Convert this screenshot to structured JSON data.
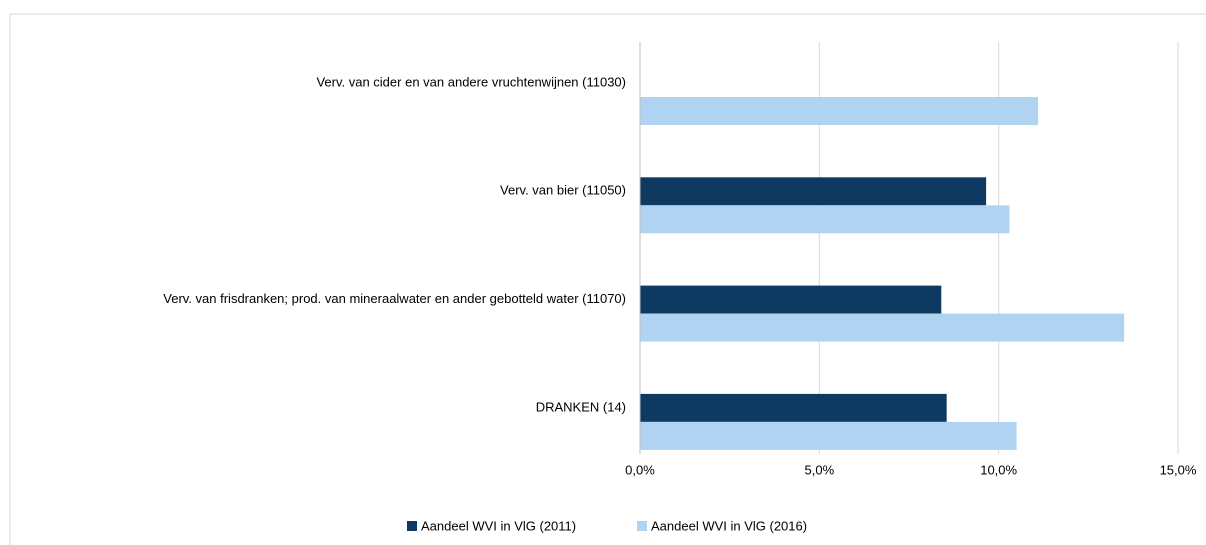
{
  "chart_data": {
    "type": "bar",
    "orientation": "horizontal",
    "categories": [
      "Verv. van cider en van andere vruchtenwijnen (11030)",
      "Verv. van bier (11050)",
      "Verv. van frisdranken; prod. van mineraalwater en ander gebotteld water (11070)",
      "DRANKEN (14)"
    ],
    "series": [
      {
        "name": "Aandeel WVI in VlG (2011)",
        "color": "#0e3a62",
        "values": [
          null,
          9.65,
          8.4,
          8.55
        ]
      },
      {
        "name": "Aandeel WVI in VlG (2016)",
        "color": "#b0d3f2",
        "values": [
          11.1,
          10.3,
          13.5,
          10.5
        ]
      }
    ],
    "xlim": [
      0,
      15
    ],
    "xticks": [
      {
        "value": 0,
        "label": "0,0%"
      },
      {
        "value": 5,
        "label": "5,0%"
      },
      {
        "value": 10,
        "label": "10,0%"
      },
      {
        "value": 15,
        "label": "15,0%"
      }
    ],
    "grid": true,
    "legend": "bottom"
  }
}
